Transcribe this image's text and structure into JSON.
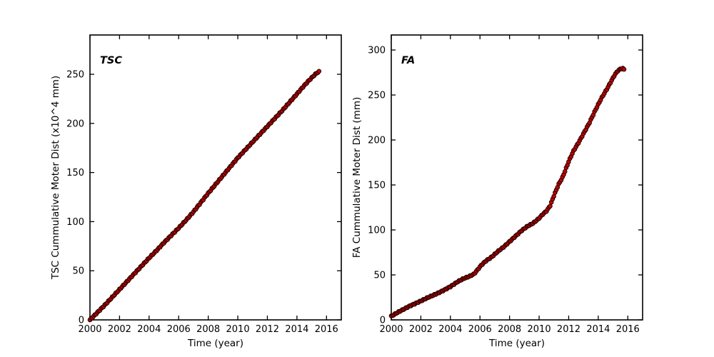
{
  "figure": {
    "background": "#ffffff",
    "axis_color": "#000000",
    "marker_fill": "#c80000",
    "marker_edge": "#200000"
  },
  "chart_data": [
    {
      "type": "scatter",
      "id": "tsc",
      "title": "TSC",
      "xlabel": "Time (year)",
      "ylabel": "TSC Cummulative Moter Dist (x10^4 mm)",
      "xlim": [
        2000,
        2017
      ],
      "ylim": [
        0,
        290
      ],
      "x_ticks": [
        2000,
        2002,
        2004,
        2006,
        2008,
        2010,
        2012,
        2014,
        2016
      ],
      "y_ticks": [
        0,
        50,
        100,
        150,
        200,
        250
      ],
      "grid": false,
      "legend": "none",
      "sample_step_years": 0.0833,
      "x_range": [
        2000.0,
        2015.55
      ],
      "anchors": [
        [
          2000.0,
          0
        ],
        [
          2000.5,
          7.5
        ],
        [
          2001.0,
          15
        ],
        [
          2001.5,
          23
        ],
        [
          2002.0,
          31
        ],
        [
          2002.5,
          39
        ],
        [
          2003.0,
          47
        ],
        [
          2003.5,
          55
        ],
        [
          2004.0,
          63
        ],
        [
          2004.5,
          70.5
        ],
        [
          2005.0,
          78.5
        ],
        [
          2005.5,
          86
        ],
        [
          2006.0,
          93.5
        ],
        [
          2006.5,
          101.5
        ],
        [
          2007.0,
          110
        ],
        [
          2007.5,
          119.5
        ],
        [
          2008.0,
          129
        ],
        [
          2008.5,
          138
        ],
        [
          2009.0,
          147
        ],
        [
          2009.5,
          156
        ],
        [
          2010.0,
          165
        ],
        [
          2010.5,
          173
        ],
        [
          2011.0,
          181
        ],
        [
          2011.5,
          189
        ],
        [
          2012.0,
          197
        ],
        [
          2012.5,
          205
        ],
        [
          2013.0,
          213
        ],
        [
          2013.5,
          221.5
        ],
        [
          2014.0,
          230
        ],
        [
          2014.4,
          237
        ],
        [
          2014.8,
          243.5
        ],
        [
          2015.1,
          248
        ],
        [
          2015.35,
          251.5
        ],
        [
          2015.55,
          253
        ]
      ]
    },
    {
      "type": "scatter",
      "id": "fa",
      "title": "FA",
      "xlabel": "Time (year)",
      "ylabel": "FA Cummulative Moter Dist (mm)",
      "xlim": [
        2000,
        2017
      ],
      "ylim": [
        0,
        316.7
      ],
      "x_ticks": [
        2000,
        2002,
        2004,
        2006,
        2008,
        2010,
        2012,
        2014,
        2016
      ],
      "y_ticks": [
        0,
        50,
        100,
        150,
        200,
        250,
        300
      ],
      "grid": false,
      "legend": "none",
      "sample_step_years": 0.0833,
      "x_range": [
        2000.0,
        2015.78
      ],
      "anchors": [
        [
          2000.0,
          4
        ],
        [
          2000.4,
          8
        ],
        [
          2000.8,
          11.5
        ],
        [
          2001.2,
          15
        ],
        [
          2001.6,
          18
        ],
        [
          2002.0,
          21
        ],
        [
          2002.5,
          25
        ],
        [
          2003.0,
          28.5
        ],
        [
          2003.5,
          32.5
        ],
        [
          2004.0,
          37
        ],
        [
          2004.5,
          42.5
        ],
        [
          2004.9,
          46
        ],
        [
          2005.3,
          48.5
        ],
        [
          2005.6,
          51
        ],
        [
          2005.85,
          56
        ],
        [
          2006.1,
          61
        ],
        [
          2006.4,
          65.5
        ],
        [
          2006.8,
          70
        ],
        [
          2007.2,
          76
        ],
        [
          2007.6,
          81
        ],
        [
          2008.0,
          87
        ],
        [
          2008.4,
          93
        ],
        [
          2008.8,
          99
        ],
        [
          2009.2,
          104
        ],
        [
          2009.6,
          107.5
        ],
        [
          2010.0,
          113
        ],
        [
          2010.25,
          117.5
        ],
        [
          2010.5,
          121
        ],
        [
          2010.75,
          127
        ],
        [
          2011.0,
          138
        ],
        [
          2011.3,
          150
        ],
        [
          2011.6,
          159
        ],
        [
          2012.0,
          176
        ],
        [
          2012.3,
          187
        ],
        [
          2012.7,
          198
        ],
        [
          2013.0,
          207
        ],
        [
          2013.4,
          219
        ],
        [
          2013.8,
          233
        ],
        [
          2014.2,
          246
        ],
        [
          2014.6,
          257
        ],
        [
          2014.9,
          266
        ],
        [
          2015.1,
          272
        ],
        [
          2015.3,
          276.5
        ],
        [
          2015.5,
          279
        ],
        [
          2015.65,
          279.6
        ],
        [
          2015.78,
          278
        ]
      ]
    }
  ]
}
